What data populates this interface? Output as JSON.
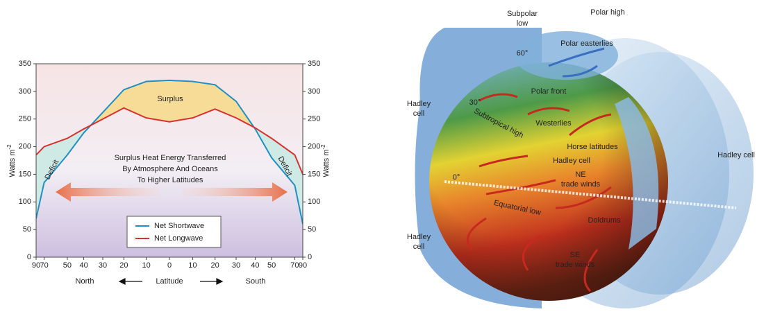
{
  "chart_data": {
    "type": "line",
    "x": [
      -90,
      -70,
      -50,
      -40,
      -30,
      -20,
      -10,
      0,
      10,
      20,
      30,
      40,
      50,
      70,
      90
    ],
    "xscale": "sine",
    "xlim": [
      -90,
      90
    ],
    "xticks": [
      {
        "value": -90,
        "label": "90"
      },
      {
        "value": -70,
        "label": "70"
      },
      {
        "value": -50,
        "label": "50"
      },
      {
        "value": -40,
        "label": "40"
      },
      {
        "value": -30,
        "label": "30"
      },
      {
        "value": -20,
        "label": "20"
      },
      {
        "value": -10,
        "label": "10"
      },
      0,
      10,
      20,
      30,
      40,
      50,
      70,
      90
    ],
    "xlabel": "Latitude",
    "xlabel_left": "North",
    "xlabel_right": "South",
    "ylabel": {
      "base": "Watts m",
      "sup": "-2"
    },
    "ylim": [
      0,
      350
    ],
    "yticks": [
      0,
      50,
      100,
      150,
      200,
      250,
      300,
      350
    ],
    "y2lim": [
      0,
      350
    ],
    "y2ticks": [
      0,
      50,
      100,
      150,
      200,
      250,
      300,
      350
    ],
    "series": [
      {
        "name": "Net Shortwave",
        "color": "#1f8fc4",
        "values": [
          70,
          135,
          185,
          225,
          262,
          303,
          318,
          320,
          318,
          312,
          282,
          232,
          180,
          130,
          60
        ]
      },
      {
        "name": "Net Longwave",
        "color": "#d8302c",
        "values": [
          185,
          200,
          215,
          232,
          250,
          270,
          252,
          245,
          252,
          268,
          252,
          234,
          215,
          185,
          150
        ]
      }
    ],
    "annotations": [
      "Surplus",
      "Deficit",
      "Deficit",
      "Surplus Heat Energy Transferred",
      "By Atmosphere And Oceans",
      "To Higher Latitudes"
    ],
    "surplus_color": "#f6dc96",
    "deficit_color": "#cfe9e4"
  },
  "diagram": {
    "labels": [
      [
        "Subpolar",
        "low"
      ],
      [
        "Polar high"
      ],
      [
        "Polar easterlies"
      ],
      [
        "60°"
      ],
      [
        "Polar front"
      ],
      [
        "30°"
      ],
      [
        "Subtropical high"
      ],
      [
        "Westerlies"
      ],
      [
        "Hadley",
        "cell"
      ],
      [
        "Horse latitudes"
      ],
      [
        "Hadley cell"
      ],
      [
        "NE",
        "trade winds"
      ],
      [
        "0°"
      ],
      [
        "Hadley cell"
      ],
      [
        "Equatorial low"
      ],
      [
        "Doldrums"
      ],
      [
        "Hadley",
        "cell"
      ],
      [
        "SE",
        "trade winds"
      ]
    ]
  }
}
